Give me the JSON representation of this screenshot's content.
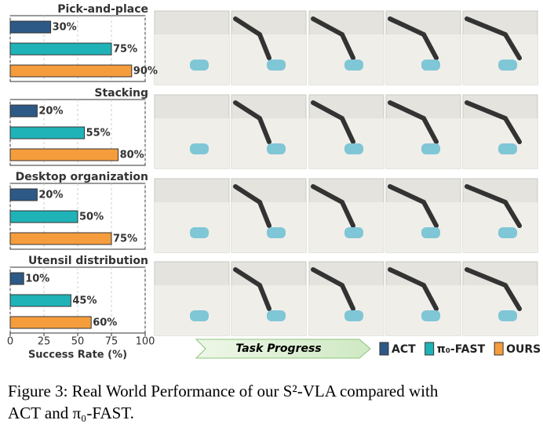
{
  "chart_data": [
    {
      "type": "barh",
      "title": "Pick-and-place",
      "values": [
        30,
        75,
        90
      ],
      "value_labels": [
        "30%",
        "75%",
        "90%"
      ],
      "xlim": [
        0,
        100
      ],
      "xticks": [
        0,
        25,
        50,
        75,
        100
      ],
      "grid": true
    },
    {
      "type": "barh",
      "title": "Stacking",
      "values": [
        20,
        55,
        80
      ],
      "value_labels": [
        "20%",
        "55%",
        "80%"
      ],
      "xlim": [
        0,
        100
      ],
      "xticks": [
        0,
        25,
        50,
        75,
        100
      ],
      "grid": true
    },
    {
      "type": "barh",
      "title": "Desktop organization",
      "values": [
        20,
        50,
        75
      ],
      "value_labels": [
        "20%",
        "50%",
        "75%"
      ],
      "xlim": [
        0,
        100
      ],
      "xticks": [
        0,
        25,
        50,
        75,
        100
      ],
      "grid": true
    },
    {
      "type": "barh",
      "title": "Utensil distribution",
      "values": [
        10,
        45,
        60
      ],
      "value_labels": [
        "10%",
        "45%",
        "60%"
      ],
      "xlim": [
        0,
        100
      ],
      "xticks": [
        0,
        25,
        50,
        75,
        100
      ],
      "grid": true,
      "xlabel": "Success Rate (%)"
    }
  ],
  "legend": [
    {
      "name": "ACT",
      "color": "#2d5986"
    },
    {
      "name": "π₀-FAST",
      "color": "#1fb3b8"
    },
    {
      "name": "OURS",
      "color": "#f59d3d"
    }
  ],
  "progress_label": "Task Progress",
  "caption": [
    "Figure 3: Real World Performance of our S²-VLA compared with",
    "ACT and π₀-FAST."
  ]
}
